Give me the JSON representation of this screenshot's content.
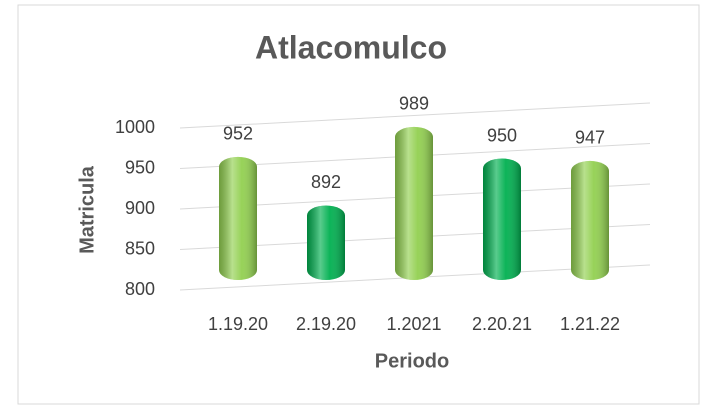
{
  "chart_data": {
    "type": "bar",
    "title": "Atlacomulco",
    "categories": [
      "1.19.20",
      "2.19.20",
      "1.2021",
      "2.20.21",
      "1.21.22"
    ],
    "values": [
      952,
      892,
      989,
      950,
      947
    ],
    "colors": [
      "#92d050",
      "#00b050",
      "#92d050",
      "#00b050",
      "#92d050"
    ],
    "ylim": [
      800,
      1000
    ],
    "yticks": [
      800,
      850,
      900,
      950,
      1000
    ],
    "y_label": "Matricula",
    "x_label": "Periodo",
    "grid": true
  }
}
